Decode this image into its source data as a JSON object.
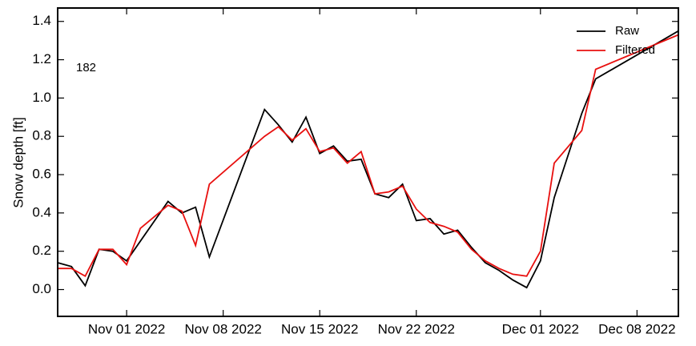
{
  "chart_data": {
    "type": "line",
    "y_label": "Snow depth [ft]",
    "annotation": "182",
    "legend_position": "upper right",
    "xlim": [
      "2022-10-27",
      "2022-12-11"
    ],
    "xticks": [
      {
        "value": "2022-11-01",
        "label": "Nov 01 2022"
      },
      {
        "value": "2022-11-08",
        "label": "Nov 08 2022"
      },
      {
        "value": "2022-11-15",
        "label": "Nov 15 2022"
      },
      {
        "value": "2022-11-22",
        "label": "Nov 22 2022"
      },
      {
        "value": "2022-12-01",
        "label": "Dec 01 2022"
      },
      {
        "value": "2022-12-08",
        "label": "Dec 08 2022"
      }
    ],
    "ylim": [
      -0.14,
      1.47
    ],
    "yticks": [
      {
        "value": 0,
        "label": "0.0"
      },
      0.2,
      0.4,
      0.6,
      0.8,
      {
        "value": 1,
        "label": "1.0"
      },
      1.2,
      1.4
    ],
    "series": [
      {
        "name": "Raw",
        "color": "#000000",
        "x": [
          "2022-10-27",
          "2022-10-28",
          "2022-10-29",
          "2022-10-30",
          "2022-10-31",
          "2022-11-01",
          "2022-11-04",
          "2022-11-05",
          "2022-11-06",
          "2022-11-07",
          "2022-11-11",
          "2022-11-12",
          "2022-11-13",
          "2022-11-14",
          "2022-11-15",
          "2022-11-16",
          "2022-11-17",
          "2022-11-18",
          "2022-11-19",
          "2022-11-20",
          "2022-11-21",
          "2022-11-22",
          "2022-11-23",
          "2022-11-24",
          "2022-11-25",
          "2022-11-26",
          "2022-11-27",
          "2022-11-28",
          "2022-11-29",
          "2022-11-30",
          "2022-12-01",
          "2022-12-02",
          "2022-12-04",
          "2022-12-05",
          "2022-12-11"
        ],
        "values": [
          0.14,
          0.12,
          0.02,
          0.21,
          0.2,
          0.15,
          0.46,
          0.4,
          0.43,
          0.17,
          0.94,
          0.86,
          0.77,
          0.9,
          0.71,
          0.75,
          0.67,
          0.68,
          0.5,
          0.48,
          0.55,
          0.36,
          0.37,
          0.29,
          0.31,
          0.22,
          0.14,
          0.1,
          0.05,
          0.01,
          0.15,
          0.48,
          0.92,
          1.1,
          1.35
        ]
      },
      {
        "name": "Filtered",
        "color": "#e8100f",
        "x": [
          "2022-10-27",
          "2022-10-28",
          "2022-10-29",
          "2022-10-30",
          "2022-10-31",
          "2022-11-01",
          "2022-11-02",
          "2022-11-04",
          "2022-11-05",
          "2022-11-06",
          "2022-11-07",
          "2022-11-11",
          "2022-11-12",
          "2022-11-13",
          "2022-11-14",
          "2022-11-15",
          "2022-11-16",
          "2022-11-17",
          "2022-11-18",
          "2022-11-19",
          "2022-11-20",
          "2022-11-21",
          "2022-11-22",
          "2022-11-23",
          "2022-11-24",
          "2022-11-25",
          "2022-11-26",
          "2022-11-27",
          "2022-11-28",
          "2022-11-29",
          "2022-11-30",
          "2022-12-01",
          "2022-12-02",
          "2022-12-04",
          "2022-12-05",
          "2022-12-11"
        ],
        "values": [
          0.11,
          0.11,
          0.07,
          0.21,
          0.21,
          0.13,
          0.32,
          0.44,
          0.41,
          0.23,
          0.55,
          0.8,
          0.85,
          0.78,
          0.84,
          0.72,
          0.74,
          0.66,
          0.72,
          0.5,
          0.51,
          0.54,
          0.42,
          0.35,
          0.33,
          0.3,
          0.21,
          0.15,
          0.11,
          0.08,
          0.07,
          0.2,
          0.66,
          0.83,
          1.15,
          1.33
        ]
      }
    ]
  }
}
